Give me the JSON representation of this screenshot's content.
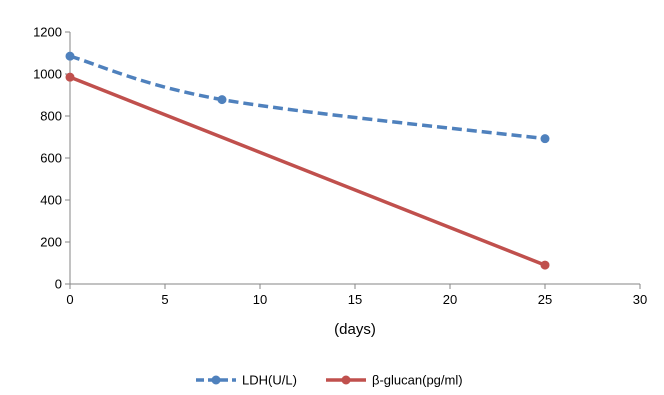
{
  "chart_data": {
    "type": "line",
    "title": "",
    "xlabel": "(days)",
    "ylabel": "",
    "xlim": [
      0,
      30
    ],
    "ylim": [
      0,
      1200
    ],
    "x_ticks": [
      0,
      5,
      10,
      15,
      20,
      25,
      30
    ],
    "y_ticks": [
      0,
      200,
      400,
      600,
      800,
      1000,
      1200
    ],
    "x_tick_labels": [
      "0",
      "5",
      "10",
      "15",
      "20",
      "25",
      "30"
    ],
    "y_tick_labels": [
      "0",
      "200",
      "400",
      "600",
      "800",
      "1000",
      "1200"
    ],
    "grid": false,
    "legend_position": "bottom",
    "series": [
      {
        "name": "LDH(U/L)",
        "color": "#4F81BD",
        "line_style": "dashed",
        "marker": "circle",
        "smooth": true,
        "x": [
          0,
          8,
          25
        ],
        "y": [
          1085,
          878,
          692
        ]
      },
      {
        "name": "β-glucan(pg/ml)",
        "color": "#C0504D",
        "line_style": "solid",
        "marker": "circle",
        "smooth": false,
        "x": [
          0,
          25
        ],
        "y": [
          985,
          90
        ]
      }
    ]
  }
}
